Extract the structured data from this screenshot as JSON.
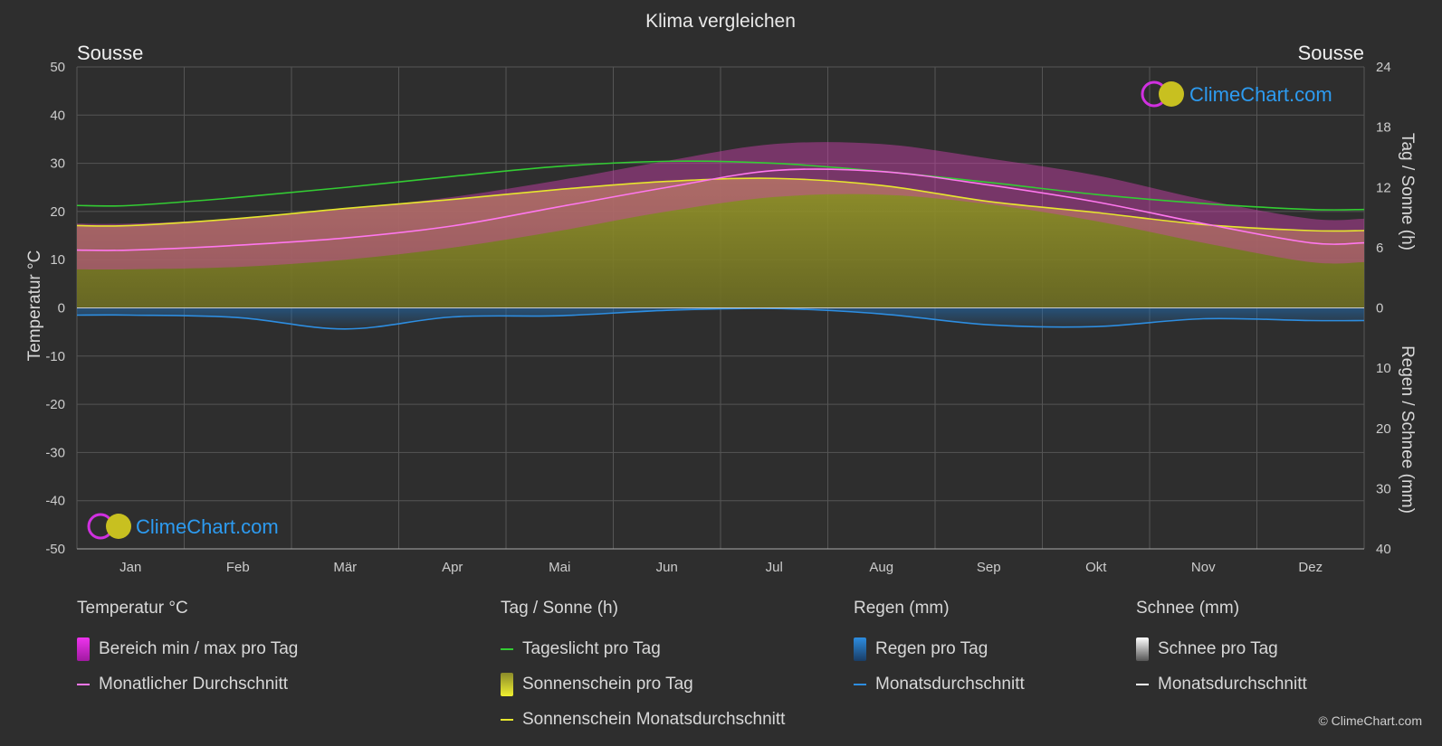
{
  "page": {
    "title": "Klima vergleichen",
    "location_left": "Sousse",
    "location_right": "Sousse",
    "copyright": "© ClimeChart.com"
  },
  "brand": {
    "name": "ClimeChart.com",
    "color": "#2d9bf0"
  },
  "chart_data": {
    "type": "area",
    "title": "Klima vergleichen",
    "categories": [
      "Jan",
      "Feb",
      "Mär",
      "Apr",
      "Mai",
      "Jun",
      "Jul",
      "Aug",
      "Sep",
      "Okt",
      "Nov",
      "Dez"
    ],
    "y_left": {
      "label": "Temperatur °C",
      "range": [
        -50,
        50
      ],
      "ticks": [
        "50",
        "40",
        "30",
        "20",
        "10",
        "0",
        "-10",
        "-20",
        "-30",
        "-40",
        "-50"
      ]
    },
    "y_right_top": {
      "label": "Tag / Sonne (h)",
      "range": [
        0,
        24
      ],
      "ticks": [
        "24",
        "18",
        "12",
        "6",
        "0"
      ]
    },
    "y_right_bottom": {
      "label": "Regen / Schnee (mm)",
      "range": [
        0,
        40
      ],
      "ticks": [
        "10",
        "20",
        "30",
        "40"
      ]
    },
    "grid": true,
    "series": [
      {
        "name": "Tageslicht pro Tag",
        "unit": "h",
        "color": "#33cc33",
        "values": [
          10.2,
          11.0,
          12.0,
          13.1,
          14.1,
          14.6,
          14.4,
          13.6,
          12.5,
          11.3,
          10.4,
          9.8
        ]
      },
      {
        "name": "Sonnenschein Monatsdurchschnitt",
        "unit": "h",
        "color": "#e6e62e",
        "values": [
          8.2,
          8.9,
          9.9,
          10.8,
          11.8,
          12.6,
          12.9,
          12.2,
          10.6,
          9.5,
          8.3,
          7.7
        ]
      },
      {
        "name": "Monatlicher Durchschnitt",
        "unit": "°C",
        "color": "#ff77ee",
        "values": [
          12.0,
          13.0,
          14.5,
          17.0,
          21.0,
          25.0,
          28.5,
          28.3,
          25.5,
          22.0,
          17.5,
          13.5
        ]
      },
      {
        "name": "Bereich min / max pro Tag",
        "unit": "°C",
        "color": "#d020c0",
        "min": [
          8.0,
          8.5,
          10.0,
          12.5,
          16.0,
          20.0,
          23.0,
          23.5,
          21.5,
          18.0,
          13.5,
          9.5
        ],
        "max": [
          17.5,
          18.5,
          20.5,
          23.0,
          26.5,
          30.5,
          34.0,
          34.0,
          31.0,
          27.5,
          22.5,
          18.5
        ]
      },
      {
        "name": "Regen Monatsdurchschnitt",
        "unit": "mm",
        "color": "#2d8de0",
        "values": [
          1.2,
          1.6,
          3.5,
          1.5,
          1.3,
          0.4,
          0.1,
          1.0,
          2.8,
          3.1,
          1.8,
          2.1
        ]
      },
      {
        "name": "Schnee Monatsdurchschnitt",
        "unit": "mm",
        "color": "#ffffff",
        "values": [
          0,
          0,
          0,
          0,
          0,
          0,
          0,
          0,
          0,
          0,
          0,
          0
        ]
      }
    ]
  },
  "legend": {
    "groups": [
      {
        "title": "Temperatur °C",
        "items": [
          {
            "label": "Bereich min / max pro Tag",
            "kind": "box",
            "color": "#dd22dd"
          },
          {
            "label": "Monatlicher Durchschnitt",
            "kind": "line",
            "color": "#ff77ee"
          }
        ]
      },
      {
        "title": "Tag / Sonne (h)",
        "items": [
          {
            "label": "Tageslicht pro Tag",
            "kind": "line",
            "color": "#33cc33"
          },
          {
            "label": "Sonnenschein pro Tag",
            "kind": "box",
            "color": "#d8d82e"
          },
          {
            "label": "Sonnenschein Monatsdurchschnitt",
            "kind": "line",
            "color": "#e6e62e"
          }
        ]
      },
      {
        "title": "Regen (mm)",
        "items": [
          {
            "label": "Regen pro Tag",
            "kind": "box",
            "color": "#2d8de0"
          },
          {
            "label": "Monatsdurchschnitt",
            "kind": "line",
            "color": "#2d8de0"
          }
        ]
      },
      {
        "title": "Schnee (mm)",
        "items": [
          {
            "label": "Schnee pro Tag",
            "kind": "box",
            "color": "#dddddd"
          },
          {
            "label": "Monatsdurchschnitt",
            "kind": "line",
            "color": "#ffffff"
          }
        ]
      }
    ]
  }
}
